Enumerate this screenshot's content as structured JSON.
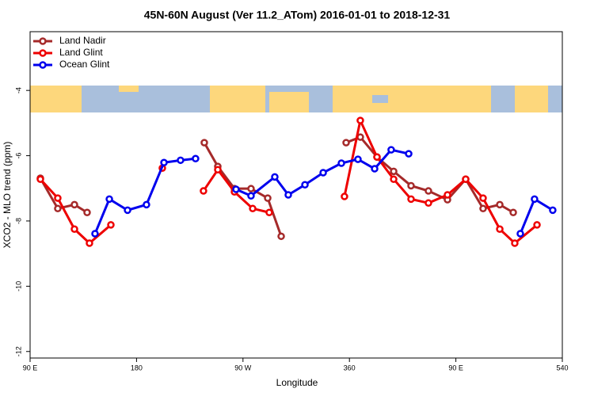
{
  "chart_data": {
    "type": "line",
    "title": "45N-60N August (Ver 11.2_ATom)   2016-01-01 to 2018-12-31",
    "x_label": "Longitude",
    "y_label": "XCO2 - MLO trend (ppm)",
    "xlim": [
      90,
      540
    ],
    "xticks": [
      {
        "value": 90,
        "label": "90 E"
      },
      180,
      {
        "value": 270,
        "label": "90 W"
      },
      360,
      {
        "value": 450,
        "label": "90 E"
      },
      540
    ],
    "ylim": [
      -12.2,
      -2.2
    ],
    "yticks": [
      -4,
      -6,
      -8,
      -10,
      -12
    ],
    "legend": "top-left",
    "series": [
      {
        "name": "Land Nadir",
        "color": "#a52a2a",
        "x": [
          98.7,
          113.4,
          127.5,
          138.2,
          null,
          237.3,
          248.7,
          262.8,
          276.8,
          290.9,
          302.3,
          null,
          357.2,
          369.2,
          383.3,
          397.4,
          412.1,
          426.8,
          442.9,
          458.3,
          473.0,
          487.1,
          498.5
        ],
        "values": [
          -6.69,
          -7.62,
          -7.5,
          -7.74,
          null,
          -5.6,
          -6.33,
          -7.01,
          -7.01,
          -7.3,
          -8.47,
          null,
          -5.6,
          -5.43,
          -6.04,
          -6.48,
          -6.92,
          -7.08,
          -7.35,
          -6.72,
          -7.62,
          -7.5,
          -7.74
        ]
      },
      {
        "name": "Land Glint",
        "color": "#ee0000",
        "x": [
          98.7,
          113.4,
          127.5,
          140.2,
          158.3,
          null,
          201.8,
          null,
          236.6,
          248.7,
          262.8,
          278.2,
          292.2,
          null,
          355.8,
          369.2,
          383.3,
          397.4,
          412.1,
          426.8,
          442.9,
          458.3,
          473.0,
          487.1,
          499.8,
          518.6
        ],
        "values": [
          -6.72,
          -7.3,
          -8.25,
          -8.68,
          -8.12,
          null,
          -6.38,
          null,
          -7.08,
          -6.43,
          -7.11,
          -7.62,
          -7.74,
          null,
          -7.25,
          -4.92,
          -6.04,
          -6.72,
          -7.33,
          -7.45,
          -7.2,
          -6.72,
          -7.3,
          -8.25,
          -8.68,
          -8.12
        ]
      },
      {
        "name": "Ocean Glint",
        "color": "#0000ee",
        "x": [
          144.9,
          157.0,
          172.4,
          188.4,
          203.2,
          217.2,
          229.9,
          null,
          264.1,
          276.8,
          296.9,
          308.3,
          322.4,
          337.8,
          353.2,
          367.2,
          381.3,
          395.3,
          410.1,
          null,
          504.5,
          516.5,
          531.9
        ],
        "values": [
          -8.39,
          -7.33,
          -7.67,
          -7.5,
          -6.21,
          -6.14,
          -6.09,
          null,
          -7.03,
          -7.23,
          -6.65,
          -7.2,
          -6.89,
          -6.52,
          -6.23,
          -6.11,
          -6.4,
          -5.82,
          -5.94,
          null,
          -8.39,
          -7.33,
          -7.67
        ]
      }
    ]
  }
}
